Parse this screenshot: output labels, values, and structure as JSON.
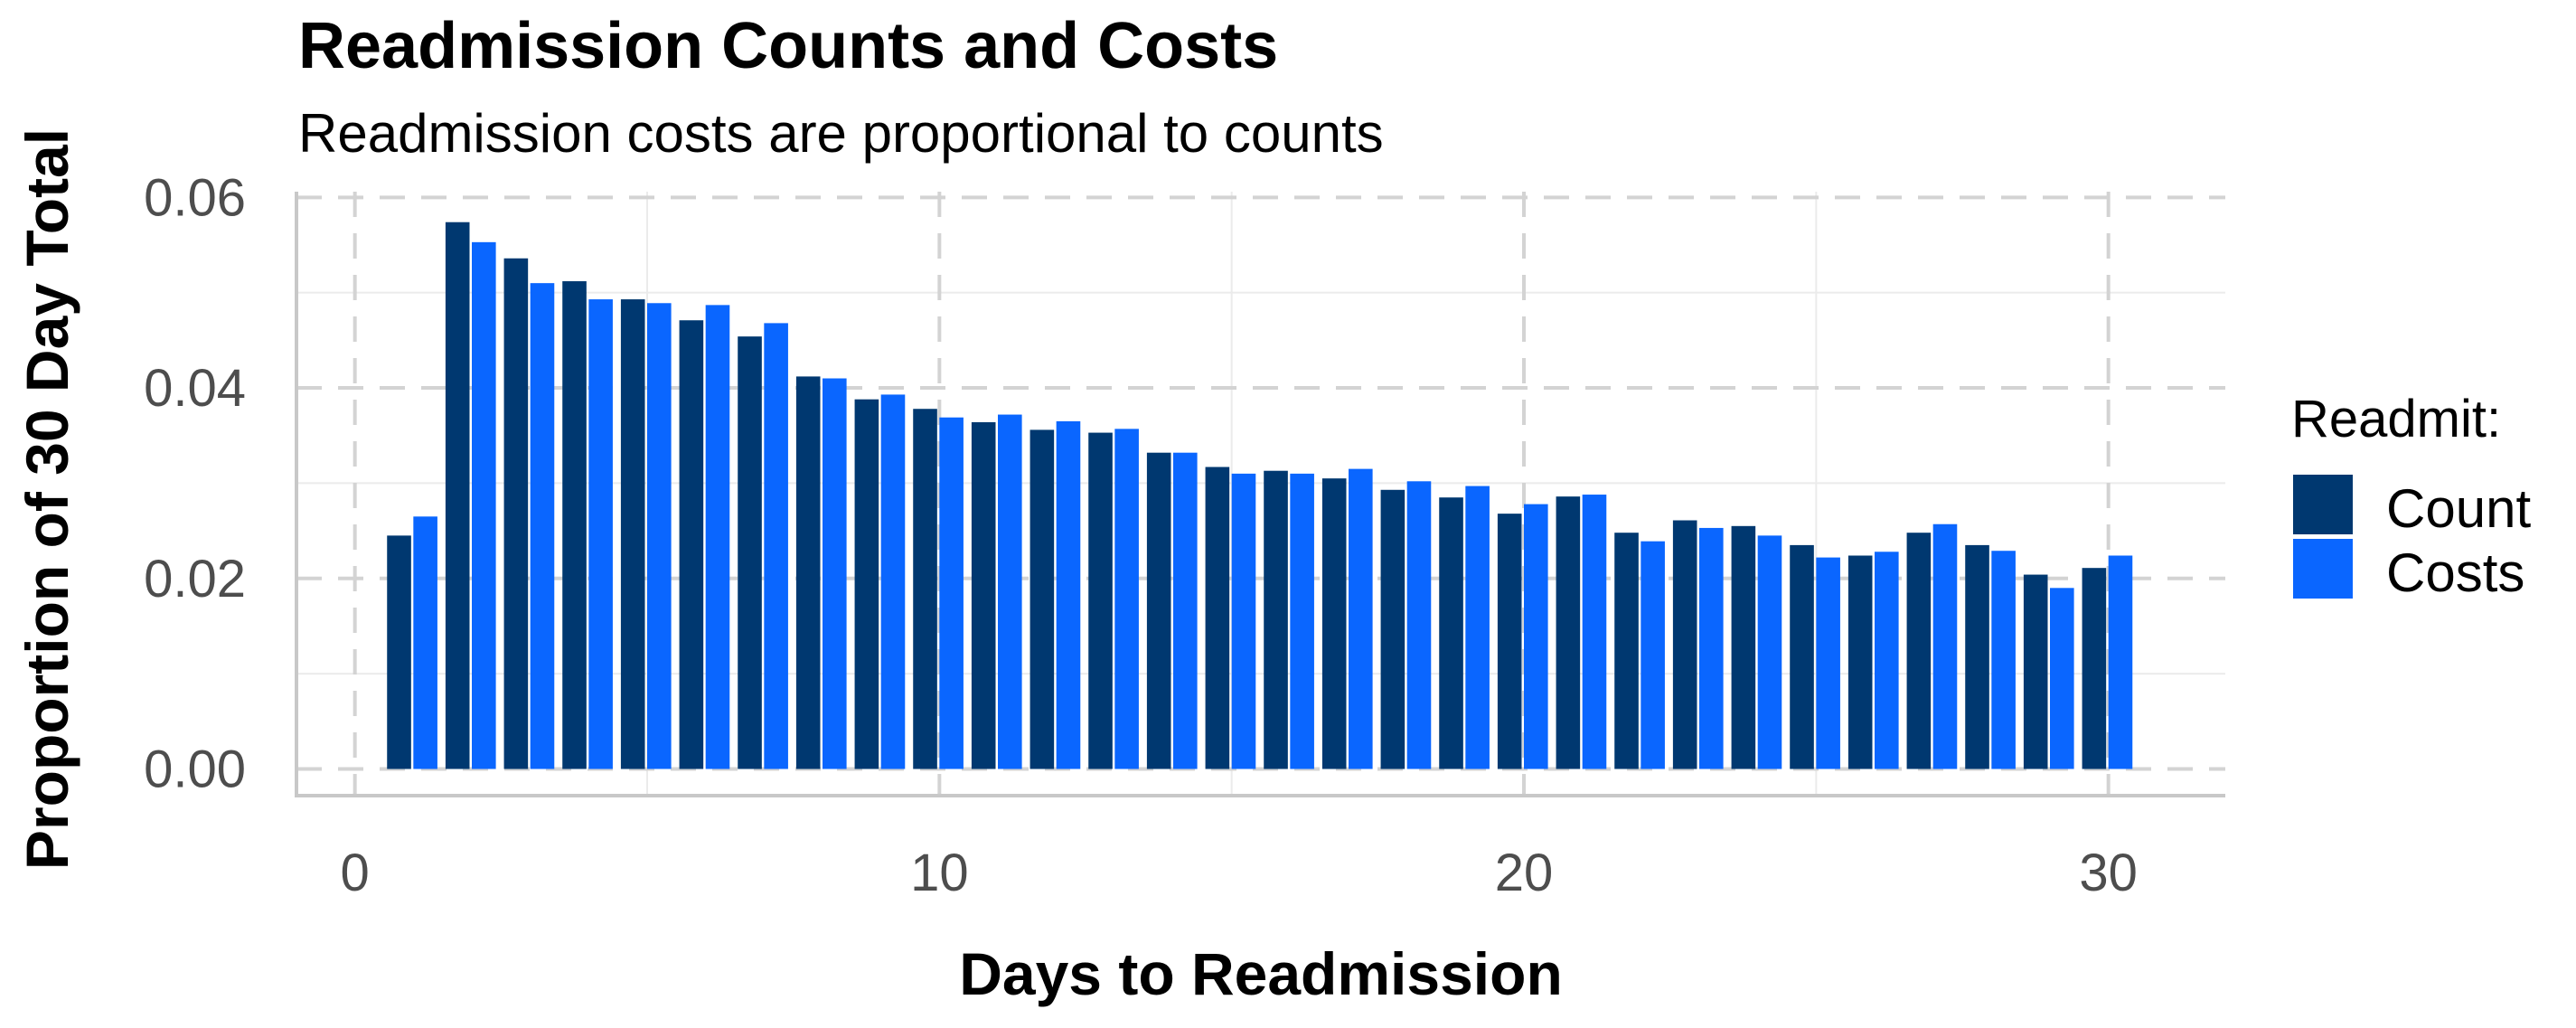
{
  "chart_data": {
    "type": "bar",
    "title": "Readmission Counts and Costs",
    "subtitle": "Readmission costs are proportional to counts",
    "xlabel": "Days to Readmission",
    "ylabel": "Proportion of 30 Day Total",
    "xlim": [
      -1,
      32
    ],
    "ylim": [
      -0.0028,
      0.0606
    ],
    "x_ticks": [
      "0",
      "10",
      "20",
      "30"
    ],
    "y_ticks": [
      "0.00",
      "0.02",
      "0.04",
      "0.06"
    ],
    "x": [
      1,
      2,
      3,
      4,
      5,
      6,
      7,
      8,
      9,
      10,
      11,
      12,
      13,
      14,
      15,
      16,
      17,
      18,
      19,
      20,
      21,
      22,
      23,
      24,
      25,
      26,
      27,
      28,
      29,
      30
    ],
    "legend": {
      "title": "Readmit:",
      "position": "right"
    },
    "grid": true,
    "series": [
      {
        "name": "Count",
        "color": "#003870",
        "values": [
          0.0245,
          0.0574,
          0.0536,
          0.0512,
          0.0493,
          0.0471,
          0.0454,
          0.0412,
          0.0388,
          0.0378,
          0.0364,
          0.0356,
          0.0353,
          0.0332,
          0.0317,
          0.0313,
          0.0305,
          0.0293,
          0.0285,
          0.0268,
          0.0286,
          0.0248,
          0.0261,
          0.0255,
          0.0235,
          0.0224,
          0.0248,
          0.0235,
          0.0204,
          0.0211
        ]
      },
      {
        "name": "Costs",
        "color": "#0A66FF",
        "values": [
          0.0265,
          0.0553,
          0.051,
          0.0493,
          0.0489,
          0.0487,
          0.0468,
          0.041,
          0.0393,
          0.0369,
          0.0372,
          0.0365,
          0.0357,
          0.0332,
          0.031,
          0.031,
          0.0315,
          0.0302,
          0.0297,
          0.0278,
          0.0288,
          0.0239,
          0.0253,
          0.0245,
          0.0222,
          0.0228,
          0.0257,
          0.0229,
          0.019,
          0.0224
        ]
      }
    ]
  }
}
